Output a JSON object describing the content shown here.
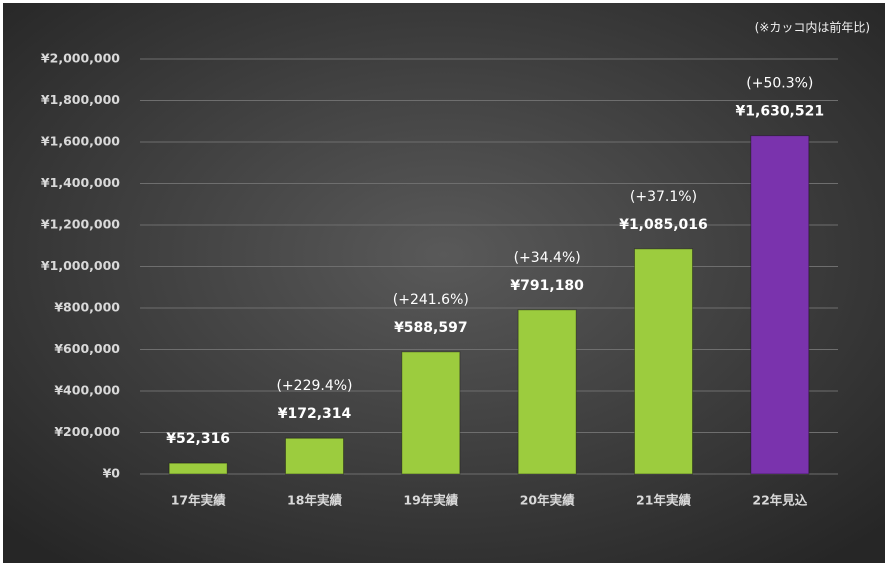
{
  "chart_data": {
    "type": "bar",
    "note": "(※カッコ内は前年比)",
    "categories": [
      "17年実績",
      "18年実績",
      "19年実績",
      "20年実績",
      "21年実績",
      "22年見込"
    ],
    "values": [
      52316,
      172314,
      588597,
      791180,
      1085016,
      1630521
    ],
    "value_labels": [
      "¥52,316",
      "¥172,314",
      "¥588,597",
      "¥791,180",
      "¥1,085,016",
      "¥1,630,521"
    ],
    "growth_labels": [
      null,
      "(+229.4%)",
      "(+241.6%)",
      "(+34.4%)",
      "(+37.1%)",
      "(+50.3%)"
    ],
    "colors": [
      "#9ccc3e",
      "#9ccc3e",
      "#9ccc3e",
      "#9ccc3e",
      "#9ccc3e",
      "#7a33ad"
    ],
    "ylim": [
      0,
      2000000
    ],
    "yticks": [
      {
        "value": 0,
        "label": "¥0"
      },
      {
        "value": 200000,
        "label": "¥200,000"
      },
      {
        "value": 400000,
        "label": "¥400,000"
      },
      {
        "value": 600000,
        "label": "¥600,000"
      },
      {
        "value": 800000,
        "label": "¥800,000"
      },
      {
        "value": 1000000,
        "label": "¥1,000,000"
      },
      {
        "value": 1200000,
        "label": "¥1,200,000"
      },
      {
        "value": 1400000,
        "label": "¥1,400,000"
      },
      {
        "value": 1600000,
        "label": "¥1,600,000"
      },
      {
        "value": 1800000,
        "label": "¥1,800,000"
      },
      {
        "value": 2000000,
        "label": "¥2,000,000"
      }
    ],
    "grid": true
  }
}
